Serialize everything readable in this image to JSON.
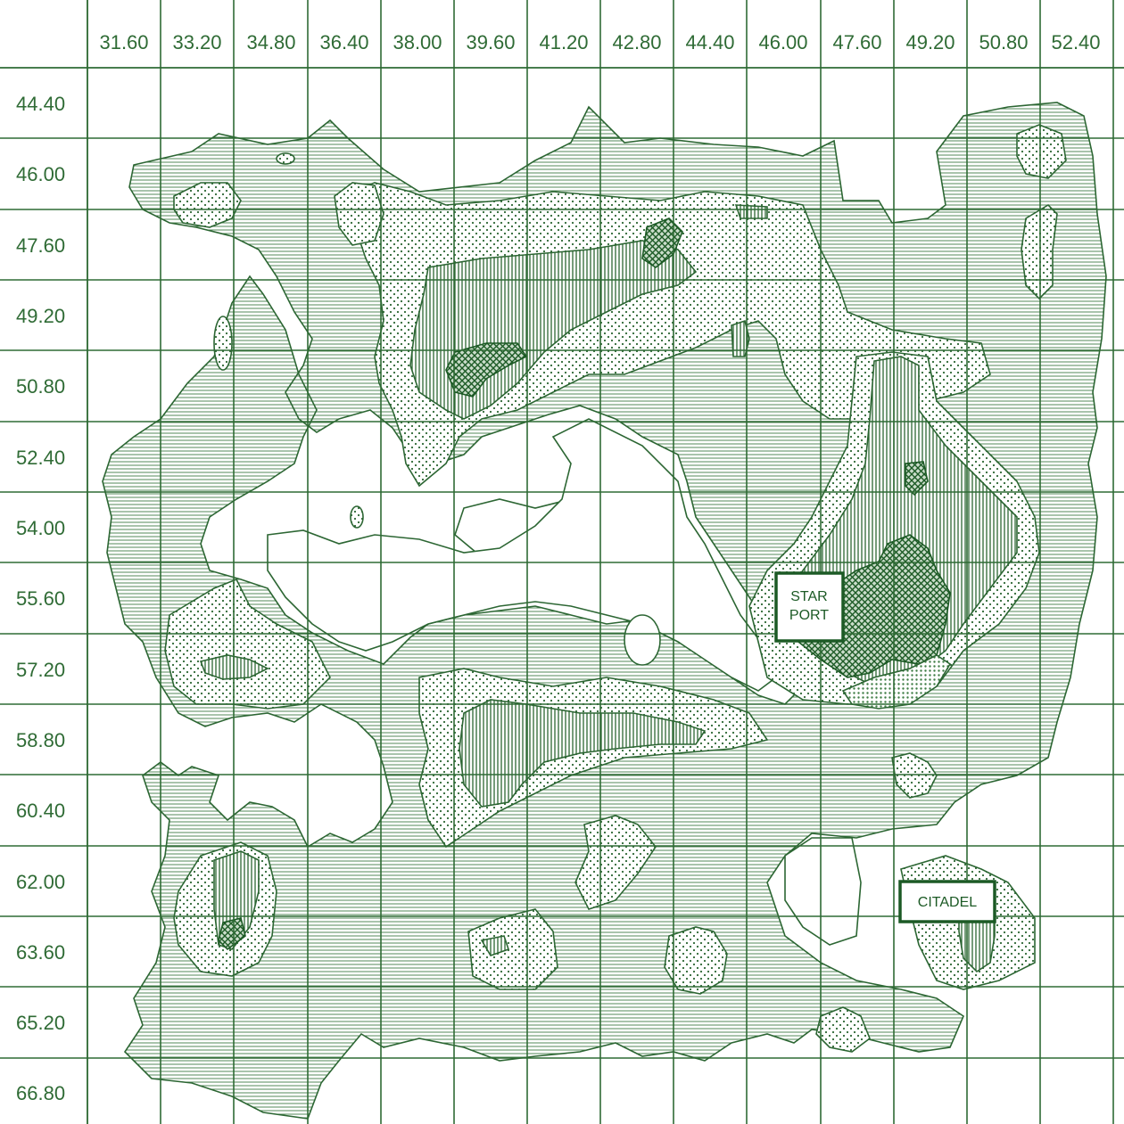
{
  "x_ticks": [
    "31.60",
    "33.20",
    "34.80",
    "36.40",
    "38.00",
    "39.60",
    "41.20",
    "42.80",
    "44.40",
    "46.00",
    "47.60",
    "49.20",
    "50.80",
    "52.40"
  ],
  "y_ticks": [
    "44.40",
    "46.00",
    "47.60",
    "49.20",
    "50.80",
    "52.40",
    "54.00",
    "55.60",
    "57.20",
    "58.80",
    "60.40",
    "62.00",
    "63.60",
    "65.20",
    "66.80"
  ],
  "labels": {
    "star_port": [
      "STAR",
      "PORT"
    ],
    "citadel": "CITADEL"
  },
  "colors": {
    "grid": "#2f6b35",
    "outline": "#2c6633",
    "hatch": "#3f7d45",
    "dark": "#1c5a25"
  }
}
